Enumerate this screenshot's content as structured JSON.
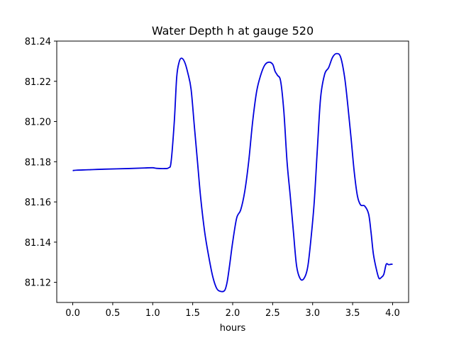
{
  "chart_data": {
    "type": "line",
    "title": "Water Depth h at gauge 520",
    "xlabel": "hours",
    "ylabel": "",
    "xlim": [
      -0.2,
      4.2
    ],
    "ylim": [
      81.11,
      81.24
    ],
    "xticks": [
      0.0,
      0.5,
      1.0,
      1.5,
      2.0,
      2.5,
      3.0,
      3.5,
      4.0
    ],
    "xtick_labels": [
      "0.0",
      "0.5",
      "1.0",
      "1.5",
      "2.0",
      "2.5",
      "3.0",
      "3.5",
      "4.0"
    ],
    "yticks": [
      81.12,
      81.14,
      81.16,
      81.18,
      81.2,
      81.22,
      81.24
    ],
    "ytick_labels": [
      "81.12",
      "81.14",
      "81.16",
      "81.18",
      "81.20",
      "81.22",
      "81.24"
    ],
    "grid": false,
    "series": [
      {
        "color": "#0000dd",
        "x": [
          0.0,
          0.05,
          0.2,
          0.4,
          0.7,
          0.9,
          1.0,
          1.05,
          1.15,
          1.2,
          1.23,
          1.27,
          1.3,
          1.33,
          1.36,
          1.4,
          1.44,
          1.48,
          1.52,
          1.56,
          1.6,
          1.65,
          1.7,
          1.75,
          1.8,
          1.85,
          1.9,
          1.93,
          1.96,
          2.0,
          2.05,
          2.1,
          2.15,
          2.2,
          2.25,
          2.3,
          2.35,
          2.4,
          2.45,
          2.5,
          2.53,
          2.56,
          2.6,
          2.64,
          2.68,
          2.72,
          2.76,
          2.8,
          2.85,
          2.9,
          2.94,
          2.98,
          3.02,
          3.06,
          3.1,
          3.15,
          3.2,
          3.25,
          3.3,
          3.35,
          3.4,
          3.44,
          3.48,
          3.52,
          3.56,
          3.6,
          3.65,
          3.7,
          3.73,
          3.76,
          3.8,
          3.83,
          3.86,
          3.89,
          3.92,
          3.95,
          3.98,
          4.0
        ],
        "y": [
          81.1756,
          81.1758,
          81.176,
          81.1763,
          81.1766,
          81.1769,
          81.177,
          81.1767,
          81.1766,
          81.177,
          81.18,
          81.2,
          81.222,
          81.2295,
          81.2315,
          81.2295,
          81.224,
          81.216,
          81.198,
          81.18,
          81.162,
          81.145,
          81.133,
          81.123,
          81.117,
          81.1155,
          81.116,
          81.12,
          81.128,
          81.14,
          81.152,
          81.156,
          81.165,
          81.18,
          81.2,
          81.215,
          81.223,
          81.228,
          81.2295,
          81.2285,
          81.225,
          81.223,
          81.22,
          81.205,
          81.18,
          81.163,
          81.145,
          81.128,
          81.1215,
          81.1225,
          81.128,
          81.142,
          81.16,
          81.187,
          81.212,
          81.2235,
          81.2268,
          81.232,
          81.2338,
          81.232,
          81.222,
          81.208,
          81.192,
          81.175,
          81.163,
          81.1585,
          81.158,
          81.154,
          81.145,
          81.134,
          81.126,
          81.122,
          81.1225,
          81.124,
          81.129,
          81.1288,
          81.129,
          81.129
        ]
      }
    ]
  }
}
